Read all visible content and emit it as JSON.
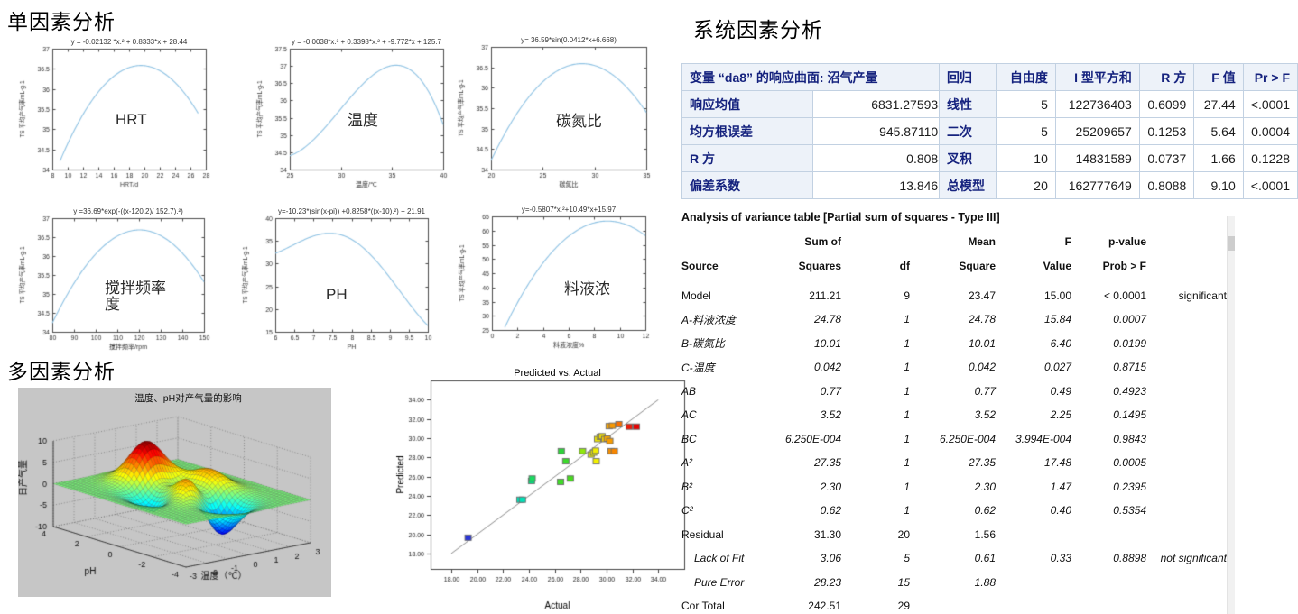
{
  "headings": {
    "single_factor": "单因素分析",
    "multi_factor": "多因素分析",
    "system_factor": "系统因素分析"
  },
  "chart_data": [
    {
      "type": "line",
      "id": "hrt",
      "title": "y = -0.02132 *x.² + 0.8333*x + 28.44",
      "center_label": "HRT",
      "xlabel": "HRT/d",
      "ylabel": "TS 平均产气率mL·g-1",
      "xlim": [
        8,
        28
      ],
      "ylim": [
        34,
        37
      ],
      "xticks": [
        8,
        10,
        12,
        14,
        16,
        18,
        20,
        22,
        24,
        26,
        28
      ],
      "yticks": [
        34,
        34.5,
        35,
        35.5,
        36,
        36.5,
        37
      ],
      "curve": {
        "type": "poly",
        "coeffs": [
          -0.02132,
          0.8333,
          28.44
        ],
        "domain": [
          9,
          27
        ]
      },
      "peak": [
        19.5,
        36.58
      ],
      "color": "#8FC3E4"
    },
    {
      "type": "line",
      "id": "temperature",
      "title": "y = -0.0038*x.³ + 0.3398*x.² + -9.772*x + 125.7",
      "center_label": "温度",
      "xlabel": "温度/℃",
      "ylabel": "TS 平均产气率mL·g-1",
      "xlim": [
        25,
        40
      ],
      "ylim": [
        34,
        37.5
      ],
      "xticks": [
        25,
        30,
        35,
        40
      ],
      "yticks": [
        34,
        34.5,
        35,
        35.5,
        36,
        36.5,
        37,
        37.5
      ],
      "curve": {
        "type": "poly",
        "coeffs": [
          -0.0038,
          0.3398,
          -9.772,
          125.7
        ],
        "domain": [
          25,
          40
        ]
      },
      "peak": [
        35.4,
        37.0
      ],
      "color": "#8FC3E4"
    },
    {
      "type": "line",
      "id": "cn_ratio",
      "title": "y= 36.59*sin(0.0412*x+6.668)",
      "center_label": "碳氮比",
      "xlabel": "碳氮比",
      "ylabel": "TS 平均产气率mL·g-1",
      "xlim": [
        20,
        35
      ],
      "ylim": [
        34,
        37
      ],
      "xticks": [
        20,
        25,
        30,
        35
      ],
      "yticks": [
        34,
        34.5,
        35,
        35.5,
        36,
        36.5,
        37
      ],
      "curve": {
        "type": "sin",
        "a": 36.59,
        "b": 0.0412,
        "c": 6.668,
        "domain": [
          20,
          35
        ]
      },
      "peak": [
        28.6,
        36.59
      ],
      "color": "#8FC3E4"
    },
    {
      "type": "line",
      "id": "stirring",
      "title": "y =36.69*exp(-((x-120.2)/ 152.7).²)",
      "center_label": "搅拌频率度",
      "xlabel": "搅拌频率/rpm",
      "ylabel": "TS 平均产气率mL·g-1",
      "xlim": [
        80,
        150
      ],
      "ylim": [
        34,
        37
      ],
      "xticks": [
        80,
        90,
        100,
        110,
        120,
        130,
        140,
        150
      ],
      "yticks": [
        34,
        34.5,
        35,
        35.5,
        36,
        36.5,
        37
      ],
      "curve": {
        "type": "gauss",
        "a": 36.69,
        "mu": 120.2,
        "s": 152.7,
        "domain": [
          80,
          150
        ]
      },
      "peak": [
        120.2,
        36.69
      ],
      "color": "#8FC3E4"
    },
    {
      "type": "line",
      "id": "ph",
      "title": "y=-10.23*(sin(x-pi)) +0.8258*((x-10).²) + 21.91",
      "center_label": "PH",
      "xlabel": "PH",
      "ylabel": "TS 平均产气率mL·g-1",
      "xlim": [
        6,
        10
      ],
      "ylim": [
        15,
        40
      ],
      "xticks": [
        6,
        6.5,
        7,
        7.5,
        8,
        8.5,
        9,
        9.5,
        10
      ],
      "yticks": [
        15,
        20,
        25,
        30,
        35,
        40
      ],
      "curve": {
        "type": "sinquad",
        "a": -10.23,
        "b": 0.8258,
        "q": 10,
        "c": 21.91,
        "domain": [
          6,
          10
        ]
      },
      "peak": [
        7.4,
        36.66
      ],
      "color": "#8FC3E4"
    },
    {
      "type": "line",
      "id": "concentration",
      "title": "y=-0.5807*x.²+10.49*x+15.97",
      "center_label": "料液浓",
      "xlabel": "料液浓度%",
      "ylabel": "TS 平均产气率mL·g-1",
      "xlim": [
        0,
        12
      ],
      "ylim": [
        25,
        65
      ],
      "xticks": [
        0,
        2,
        4,
        6,
        8,
        10,
        12
      ],
      "yticks": [
        25,
        30,
        35,
        40,
        45,
        50,
        55,
        60,
        65
      ],
      "curve": {
        "type": "poly",
        "coeffs": [
          -0.5807,
          10.49,
          15.97
        ],
        "domain": [
          1,
          12
        ]
      },
      "peak": [
        9.0,
        63.3
      ],
      "color": "#8FC3E4"
    },
    {
      "type": "surface",
      "id": "surface3d",
      "title": "温度、pH对产气量的影响",
      "xlabel": "温度（℃）",
      "ylabel": "pH",
      "zlabel": "日产气量",
      "xlim": [
        -3,
        3
      ],
      "ylim": [
        -4,
        4
      ],
      "zlim": [
        -10,
        10
      ],
      "xticks": [
        -3,
        -2,
        -1,
        0,
        1,
        2,
        3
      ],
      "yticks": [
        -4,
        -2,
        0,
        2,
        4
      ],
      "zticks": [
        -10,
        -5,
        0,
        5,
        10
      ],
      "function": "peaks-style surface",
      "z_scale": 1.15,
      "colormap": "jet",
      "background": "#C6C6C6"
    },
    {
      "type": "scatter",
      "id": "pred_vs_actual",
      "title": "Predicted vs. Actual",
      "xlabel": "Actual",
      "ylabel": "Predicted",
      "xlim": [
        16.4,
        36
      ],
      "ylim": [
        16.4,
        36
      ],
      "xticks": [
        18,
        20,
        22,
        24,
        26,
        28,
        30,
        32,
        34
      ],
      "yticks": [
        18,
        20,
        22,
        24,
        26,
        28,
        30,
        32,
        34
      ],
      "diagonal": [
        [
          18,
          18
        ],
        [
          34,
          34
        ]
      ],
      "line_color": "#8C8C8C",
      "points": [
        {
          "x": 19.3,
          "y": 19.65,
          "c": "#2B35D8"
        },
        {
          "x": 23.3,
          "y": 23.6,
          "c": "#00E3B8"
        },
        {
          "x": 23.5,
          "y": 23.6,
          "c": "#00E3B8"
        },
        {
          "x": 24.2,
          "y": 25.55,
          "c": "#00E37E"
        },
        {
          "x": 24.25,
          "y": 25.8,
          "c": "#19DC60"
        },
        {
          "x": 26.45,
          "y": 25.45,
          "c": "#3FDC28"
        },
        {
          "x": 27.2,
          "y": 25.8,
          "c": "#47DC1E"
        },
        {
          "x": 26.5,
          "y": 28.65,
          "c": "#2ED33B"
        },
        {
          "x": 26.85,
          "y": 27.6,
          "c": "#3CD92B"
        },
        {
          "x": 28.15,
          "y": 28.65,
          "c": "#8FE70E"
        },
        {
          "x": 28.8,
          "y": 28.3,
          "c": "#E8ED00"
        },
        {
          "x": 29.0,
          "y": 28.5,
          "c": "#EDED00"
        },
        {
          "x": 29.15,
          "y": 28.7,
          "c": "#F0ED00"
        },
        {
          "x": 29.2,
          "y": 27.6,
          "c": "#F2F000"
        },
        {
          "x": 29.3,
          "y": 29.9,
          "c": "#EFE700"
        },
        {
          "x": 29.5,
          "y": 30.15,
          "c": "#F1E400"
        },
        {
          "x": 29.65,
          "y": 30.2,
          "c": "#F3E000"
        },
        {
          "x": 29.85,
          "y": 29.9,
          "c": "#F6CC00"
        },
        {
          "x": 30.05,
          "y": 29.95,
          "c": "#F8A800"
        },
        {
          "x": 30.25,
          "y": 29.7,
          "c": "#F89C00"
        },
        {
          "x": 30.35,
          "y": 28.65,
          "c": "#F89000"
        },
        {
          "x": 30.6,
          "y": 28.65,
          "c": "#F88600"
        },
        {
          "x": 30.2,
          "y": 31.25,
          "c": "#F8A400"
        },
        {
          "x": 30.45,
          "y": 31.3,
          "c": "#F89800"
        },
        {
          "x": 30.95,
          "y": 31.45,
          "c": "#F87000"
        },
        {
          "x": 31.75,
          "y": 31.2,
          "c": "#ED1C09"
        },
        {
          "x": 32.3,
          "y": 31.2,
          "c": "#E90000"
        }
      ]
    }
  ],
  "response_table": {
    "header": "变量 “da8” 的响应曲面: 沼气产量",
    "rows": [
      [
        "响应均值",
        "6831.275938"
      ],
      [
        "均方根误差",
        "945.871107"
      ],
      [
        "R 方",
        "0.8088"
      ],
      [
        "偏差系数",
        "13.8462"
      ]
    ]
  },
  "regression_table": {
    "headers": [
      "回归",
      "自由度",
      "I 型平方和",
      "R 方",
      "F 值",
      "Pr > F"
    ],
    "rows": [
      [
        "线性",
        "5",
        "122736403",
        "0.6099",
        "27.44",
        "<.0001"
      ],
      [
        "二次",
        "5",
        "25209657",
        "0.1253",
        "5.64",
        "0.0004"
      ],
      [
        "叉积",
        "10",
        "14831589",
        "0.0737",
        "1.66",
        "0.1228"
      ],
      [
        "总模型",
        "20",
        "162777649",
        "0.8088",
        "9.10",
        "<.0001"
      ]
    ]
  },
  "anova_table": {
    "title": "Analysis of variance table [Partial sum of squares - Type III]",
    "header_line1": [
      "",
      "Sum of",
      "",
      "Mean",
      "F",
      "p-value",
      ""
    ],
    "header_line2": [
      "Source",
      "Squares",
      "df",
      "Square",
      "Value",
      "Prob > F",
      ""
    ],
    "rows": [
      {
        "cells": [
          "Model",
          "211.21",
          "9",
          "23.47",
          "15.00",
          "< 0.0001",
          "significant"
        ],
        "italic": false,
        "indent": false
      },
      {
        "cells": [
          "A-料液浓度",
          "24.78",
          "1",
          "24.78",
          "15.84",
          "0.0007",
          ""
        ],
        "italic": true,
        "indent": false
      },
      {
        "cells": [
          "B-碳氮比",
          "10.01",
          "1",
          "10.01",
          "6.40",
          "0.0199",
          ""
        ],
        "italic": true,
        "indent": false
      },
      {
        "cells": [
          "C-温度",
          "0.042",
          "1",
          "0.042",
          "0.027",
          "0.8715",
          ""
        ],
        "italic": true,
        "indent": false
      },
      {
        "cells": [
          "AB",
          "0.77",
          "1",
          "0.77",
          "0.49",
          "0.4923",
          ""
        ],
        "italic": true,
        "indent": false
      },
      {
        "cells": [
          "AC",
          "3.52",
          "1",
          "3.52",
          "2.25",
          "0.1495",
          ""
        ],
        "italic": true,
        "indent": false
      },
      {
        "cells": [
          "BC",
          "6.250E-004",
          "1",
          "6.250E-004",
          "3.994E-004",
          "0.9843",
          ""
        ],
        "italic": true,
        "indent": false
      },
      {
        "cells": [
          "A²",
          "27.35",
          "1",
          "27.35",
          "17.48",
          "0.0005",
          ""
        ],
        "italic": true,
        "indent": false
      },
      {
        "cells": [
          "B²",
          "2.30",
          "1",
          "2.30",
          "1.47",
          "0.2395",
          ""
        ],
        "italic": true,
        "indent": false
      },
      {
        "cells": [
          "C²",
          "0.62",
          "1",
          "0.62",
          "0.40",
          "0.5354",
          ""
        ],
        "italic": true,
        "indent": false
      },
      {
        "cells": [
          "Residual",
          "31.30",
          "20",
          "1.56",
          "",
          "",
          ""
        ],
        "italic": false,
        "indent": false
      },
      {
        "cells": [
          "Lack of Fit",
          "3.06",
          "5",
          "0.61",
          "0.33",
          "0.8898",
          "not significant"
        ],
        "italic": true,
        "indent": true
      },
      {
        "cells": [
          "Pure Error",
          "28.23",
          "15",
          "1.88",
          "",
          "",
          ""
        ],
        "italic": true,
        "indent": true
      },
      {
        "cells": [
          "Cor Total",
          "242.51",
          "29",
          "",
          "",
          "",
          ""
        ],
        "italic": false,
        "indent": false
      }
    ]
  }
}
